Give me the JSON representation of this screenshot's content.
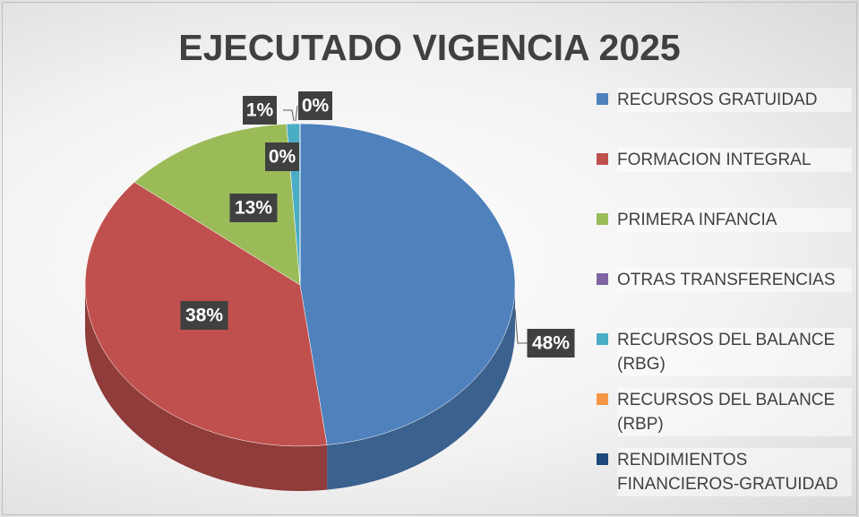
{
  "chart_data": {
    "type": "pie",
    "title": "EJECUTADO VIGENCIA 2025",
    "categories": [
      "RECURSOS GRATUIDAD",
      "FORMACION INTEGRAL",
      "PRIMERA INFANCIA",
      "OTRAS TRANSFERENCIAS",
      "RECURSOS DEL BALANCE (RBG)",
      "RECURSOS DEL BALANCE (RBP)",
      "RENDIMIENTOS FINANCIEROS-GRATUIDAD"
    ],
    "values": [
      48,
      38,
      13,
      0,
      1,
      0,
      0
    ],
    "value_labels": [
      "48%",
      "38%",
      "13%",
      "0%",
      "1%",
      "0%",
      null
    ],
    "colors": [
      "#4f81bd",
      "#c0504d",
      "#9bbb59",
      "#8064a2",
      "#4bacc6",
      "#f79646",
      "#1f497d"
    ],
    "legend": "right"
  }
}
